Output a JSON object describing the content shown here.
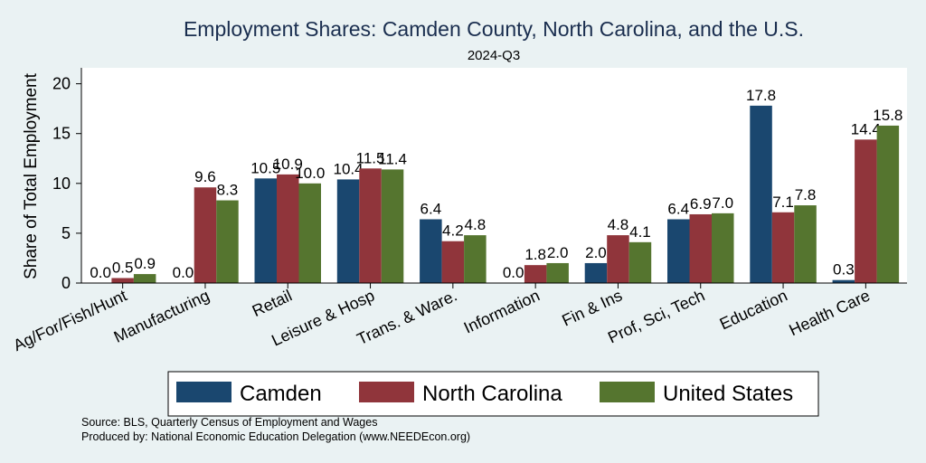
{
  "chart_data": {
    "type": "bar",
    "title": "Employment Shares: Camden County, North Carolina, and the U.S.",
    "subtitle": "2024-Q3",
    "ylabel": "Share of Total Employment",
    "xlabel": "",
    "ylim": [
      0,
      21.6
    ],
    "yticks": [
      0,
      5,
      10,
      15,
      20
    ],
    "grid": true,
    "legend_position": "bottom",
    "categories": [
      "Ag/For/Fish/Hunt",
      "Manufacturing",
      "Retail",
      "Leisure & Hosp",
      "Trans. & Ware.",
      "Information",
      "Fin & Ins",
      "Prof, Sci, Tech",
      "Education",
      "Health Care"
    ],
    "series": [
      {
        "name": "Camden",
        "color": "#1a476f",
        "values": [
          0.0,
          0.0,
          10.5,
          10.4,
          6.4,
          0.0,
          2.0,
          6.4,
          17.8,
          0.3
        ]
      },
      {
        "name": "North Carolina",
        "color": "#90353b",
        "values": [
          0.5,
          9.6,
          10.9,
          11.5,
          4.2,
          1.8,
          4.8,
          6.9,
          7.1,
          14.4
        ]
      },
      {
        "name": "United States",
        "color": "#55752f",
        "values": [
          0.9,
          8.3,
          10.0,
          11.4,
          4.8,
          2.0,
          4.1,
          7.0,
          7.8,
          15.8
        ]
      }
    ],
    "notes": [
      "Source: BLS, Quarterly Census of Employment and Wages",
      "Produced by: National Economic Education Delegation (www.NEEDEcon.org)"
    ]
  }
}
